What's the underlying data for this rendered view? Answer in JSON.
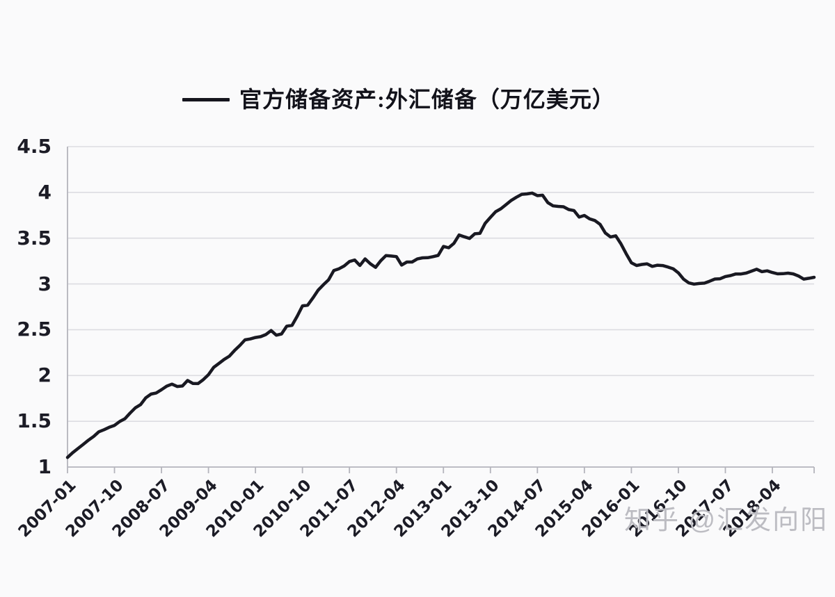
{
  "legend": {
    "label": "官方储备资产:外汇储备（万亿美元）"
  },
  "watermark": "知乎 @汇发向阳",
  "chart_data": {
    "type": "line",
    "series_name": "官方储备资产:外汇储备（万亿美元）",
    "unit": "万亿美元",
    "legend_position": "top-center",
    "grid": "horizontal",
    "line_color": "#191922",
    "grid_color": "#dcdce1",
    "axis_color": "#b4b4bc",
    "ylim": [
      1,
      4.5
    ],
    "y_ticks": [
      1,
      1.5,
      2,
      2.5,
      3,
      3.5,
      4,
      4.5
    ],
    "x_tick_labels": [
      "2007-01",
      "2007-10",
      "2008-07",
      "2009-04",
      "2010-01",
      "2010-10",
      "2011-07",
      "2012-04",
      "2013-01",
      "2013-10",
      "2014-07",
      "2015-04",
      "2016-01",
      "2016-10",
      "2017-07",
      "2018-04"
    ],
    "x": [
      "2007-01",
      "2007-02",
      "2007-03",
      "2007-04",
      "2007-05",
      "2007-06",
      "2007-07",
      "2007-08",
      "2007-09",
      "2007-10",
      "2007-11",
      "2007-12",
      "2008-01",
      "2008-02",
      "2008-03",
      "2008-04",
      "2008-05",
      "2008-06",
      "2008-07",
      "2008-08",
      "2008-09",
      "2008-10",
      "2008-11",
      "2008-12",
      "2009-01",
      "2009-02",
      "2009-03",
      "2009-04",
      "2009-05",
      "2009-06",
      "2009-07",
      "2009-08",
      "2009-09",
      "2009-10",
      "2009-11",
      "2009-12",
      "2010-01",
      "2010-02",
      "2010-03",
      "2010-04",
      "2010-05",
      "2010-06",
      "2010-07",
      "2010-08",
      "2010-09",
      "2010-10",
      "2010-11",
      "2010-12",
      "2011-01",
      "2011-02",
      "2011-03",
      "2011-04",
      "2011-05",
      "2011-06",
      "2011-07",
      "2011-08",
      "2011-09",
      "2011-10",
      "2011-11",
      "2011-12",
      "2012-01",
      "2012-02",
      "2012-03",
      "2012-04",
      "2012-05",
      "2012-06",
      "2012-07",
      "2012-08",
      "2012-09",
      "2012-10",
      "2012-11",
      "2012-12",
      "2013-01",
      "2013-02",
      "2013-03",
      "2013-04",
      "2013-05",
      "2013-06",
      "2013-07",
      "2013-08",
      "2013-09",
      "2013-10",
      "2013-11",
      "2013-12",
      "2014-01",
      "2014-02",
      "2014-03",
      "2014-04",
      "2014-05",
      "2014-06",
      "2014-07",
      "2014-08",
      "2014-09",
      "2014-10",
      "2014-11",
      "2014-12",
      "2015-01",
      "2015-02",
      "2015-03",
      "2015-04",
      "2015-05",
      "2015-06",
      "2015-07",
      "2015-08",
      "2015-09",
      "2015-10",
      "2015-11",
      "2015-12",
      "2016-01",
      "2016-02",
      "2016-03",
      "2016-04",
      "2016-05",
      "2016-06",
      "2016-07",
      "2016-08",
      "2016-09",
      "2016-10",
      "2016-11",
      "2016-12",
      "2017-01",
      "2017-02",
      "2017-03",
      "2017-04",
      "2017-05",
      "2017-06",
      "2017-07",
      "2017-08",
      "2017-09",
      "2017-10",
      "2017-11",
      "2017-12",
      "2018-01",
      "2018-02",
      "2018-03",
      "2018-04",
      "2018-05",
      "2018-06",
      "2018-07",
      "2018-08",
      "2018-09",
      "2018-10",
      "2018-11",
      "2018-12"
    ],
    "values": [
      1.105,
      1.157,
      1.202,
      1.247,
      1.293,
      1.333,
      1.385,
      1.408,
      1.434,
      1.455,
      1.497,
      1.528,
      1.59,
      1.647,
      1.682,
      1.757,
      1.797,
      1.809,
      1.845,
      1.884,
      1.906,
      1.88,
      1.885,
      1.946,
      1.913,
      1.912,
      1.954,
      2.009,
      2.089,
      2.132,
      2.175,
      2.211,
      2.273,
      2.328,
      2.389,
      2.399,
      2.415,
      2.424,
      2.447,
      2.491,
      2.44,
      2.454,
      2.539,
      2.548,
      2.648,
      2.761,
      2.768,
      2.847,
      2.932,
      2.991,
      3.045,
      3.146,
      3.166,
      3.197,
      3.245,
      3.262,
      3.202,
      3.274,
      3.221,
      3.181,
      3.254,
      3.31,
      3.305,
      3.299,
      3.206,
      3.24,
      3.24,
      3.273,
      3.285,
      3.287,
      3.298,
      3.312,
      3.41,
      3.395,
      3.443,
      3.535,
      3.515,
      3.497,
      3.548,
      3.553,
      3.663,
      3.727,
      3.789,
      3.821,
      3.867,
      3.913,
      3.948,
      3.979,
      3.984,
      3.993,
      3.965,
      3.969,
      3.888,
      3.853,
      3.847,
      3.843,
      3.813,
      3.802,
      3.73,
      3.748,
      3.711,
      3.693,
      3.651,
      3.557,
      3.514,
      3.526,
      3.438,
      3.33,
      3.231,
      3.202,
      3.213,
      3.22,
      3.192,
      3.205,
      3.201,
      3.185,
      3.166,
      3.121,
      3.052,
      3.011,
      2.998,
      3.005,
      3.009,
      3.03,
      3.054,
      3.057,
      3.081,
      3.092,
      3.109,
      3.109,
      3.119,
      3.14,
      3.161,
      3.134,
      3.143,
      3.125,
      3.111,
      3.112,
      3.118,
      3.11,
      3.087,
      3.053,
      3.062,
      3.073
    ]
  }
}
